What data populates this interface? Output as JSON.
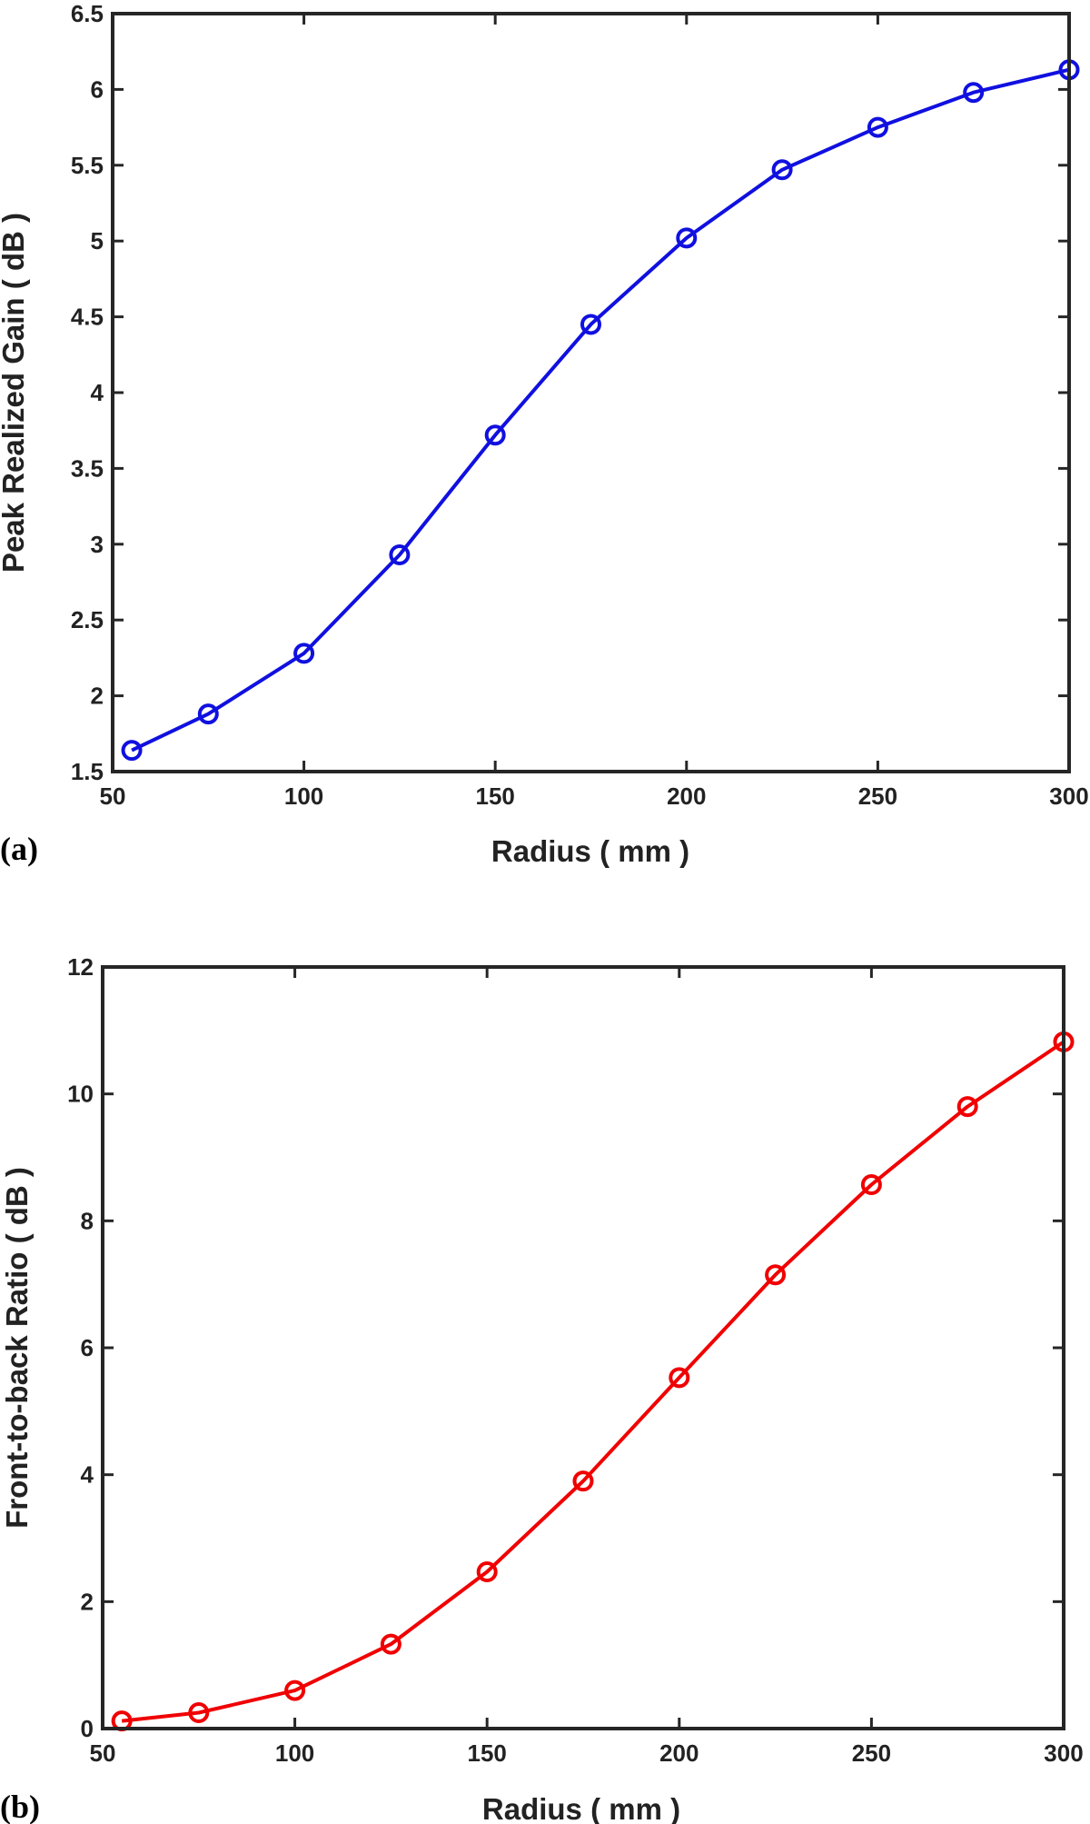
{
  "chart_data": [
    {
      "type": "line",
      "panel_label": "(a)",
      "xlabel": "Radius ( mm )",
      "ylabel": "Peak Realized Gain ( dB )",
      "xlim": [
        50,
        300
      ],
      "ylim": [
        1.5,
        6.5
      ],
      "xticks": [
        "50",
        "100",
        "150",
        "200",
        "250",
        "300"
      ],
      "yticks": [
        "1.5",
        "2",
        "2.5",
        "3",
        "3.5",
        "4",
        "4.5",
        "5",
        "5.5",
        "6",
        "6.5"
      ],
      "grid": false,
      "marker": "circle",
      "color": "#1010e0",
      "x": [
        55,
        75,
        100,
        125,
        150,
        175,
        200,
        225,
        250,
        275,
        300
      ],
      "y": [
        1.64,
        1.88,
        2.28,
        2.93,
        3.72,
        4.45,
        5.02,
        5.47,
        5.75,
        5.98,
        6.13
      ]
    },
    {
      "type": "line",
      "panel_label": "(b)",
      "xlabel": "Radius ( mm )",
      "ylabel": "Front-to-back Ratio ( dB )",
      "xlim": [
        50,
        300
      ],
      "ylim": [
        0,
        12
      ],
      "xticks": [
        "50",
        "100",
        "150",
        "200",
        "250",
        "300"
      ],
      "yticks": [
        "0",
        "2",
        "4",
        "6",
        "8",
        "10",
        "12"
      ],
      "grid": false,
      "marker": "circle",
      "color": "#f00000",
      "x": [
        55,
        75,
        100,
        125,
        150,
        175,
        200,
        225,
        250,
        275,
        300
      ],
      "y": [
        0.12,
        0.25,
        0.6,
        1.33,
        2.47,
        3.9,
        5.53,
        7.15,
        8.57,
        9.8,
        10.82
      ]
    }
  ]
}
